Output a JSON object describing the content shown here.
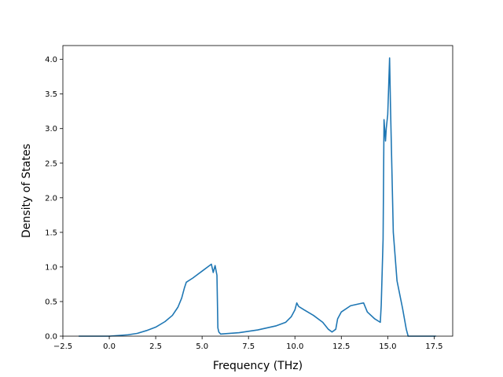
{
  "chart_data": {
    "type": "line",
    "title": "",
    "xlabel": "Frequency (THz)",
    "ylabel": "Density of States",
    "xlim": [
      -2.5,
      18.5
    ],
    "ylim": [
      0.0,
      4.2
    ],
    "xticks": [
      -2.5,
      0.0,
      2.5,
      5.0,
      7.5,
      10.0,
      12.5,
      15.0,
      17.5
    ],
    "xtick_labels": [
      "−2.5",
      "0.0",
      "2.5",
      "5.0",
      "7.5",
      "10.0",
      "12.5",
      "15.0",
      "17.5"
    ],
    "yticks": [
      0.0,
      0.5,
      1.0,
      1.5,
      2.0,
      2.5,
      3.0,
      3.5,
      4.0
    ],
    "ytick_labels": [
      "0.0",
      "0.5",
      "1.0",
      "1.5",
      "2.0",
      "2.5",
      "3.0",
      "3.5",
      "4.0"
    ],
    "grid": false,
    "legend": false,
    "series": [
      {
        "color": "#1f77b4",
        "x": [
          -1.65,
          0.0,
          0.5,
          1.0,
          1.5,
          2.0,
          2.5,
          3.0,
          3.4,
          3.7,
          3.9,
          4.05,
          4.15,
          4.5,
          5.0,
          5.3,
          5.5,
          5.6,
          5.7,
          5.8,
          5.85,
          5.9,
          6.0,
          7.0,
          8.0,
          9.0,
          9.5,
          9.8,
          10.0,
          10.1,
          10.2,
          10.5,
          11.0,
          11.5,
          11.8,
          12.0,
          12.2,
          12.3,
          12.5,
          13.0,
          13.5,
          13.7,
          13.9,
          14.3,
          14.6,
          14.65,
          14.75,
          14.8,
          14.88,
          14.92,
          15.0,
          15.05,
          15.1,
          15.15,
          15.3,
          15.5,
          15.8,
          16.0,
          16.1,
          17.6
        ],
        "y": [
          0.0,
          0.0,
          0.01,
          0.02,
          0.04,
          0.08,
          0.13,
          0.21,
          0.3,
          0.42,
          0.55,
          0.7,
          0.78,
          0.84,
          0.94,
          1.0,
          1.04,
          0.92,
          1.02,
          0.88,
          0.12,
          0.06,
          0.03,
          0.05,
          0.09,
          0.15,
          0.2,
          0.28,
          0.38,
          0.48,
          0.43,
          0.38,
          0.3,
          0.2,
          0.1,
          0.06,
          0.1,
          0.25,
          0.35,
          0.44,
          0.47,
          0.48,
          0.35,
          0.25,
          0.2,
          0.45,
          1.4,
          3.13,
          2.82,
          3.0,
          3.2,
          3.6,
          4.02,
          3.3,
          1.5,
          0.8,
          0.4,
          0.1,
          0.0,
          0.0
        ]
      }
    ]
  }
}
